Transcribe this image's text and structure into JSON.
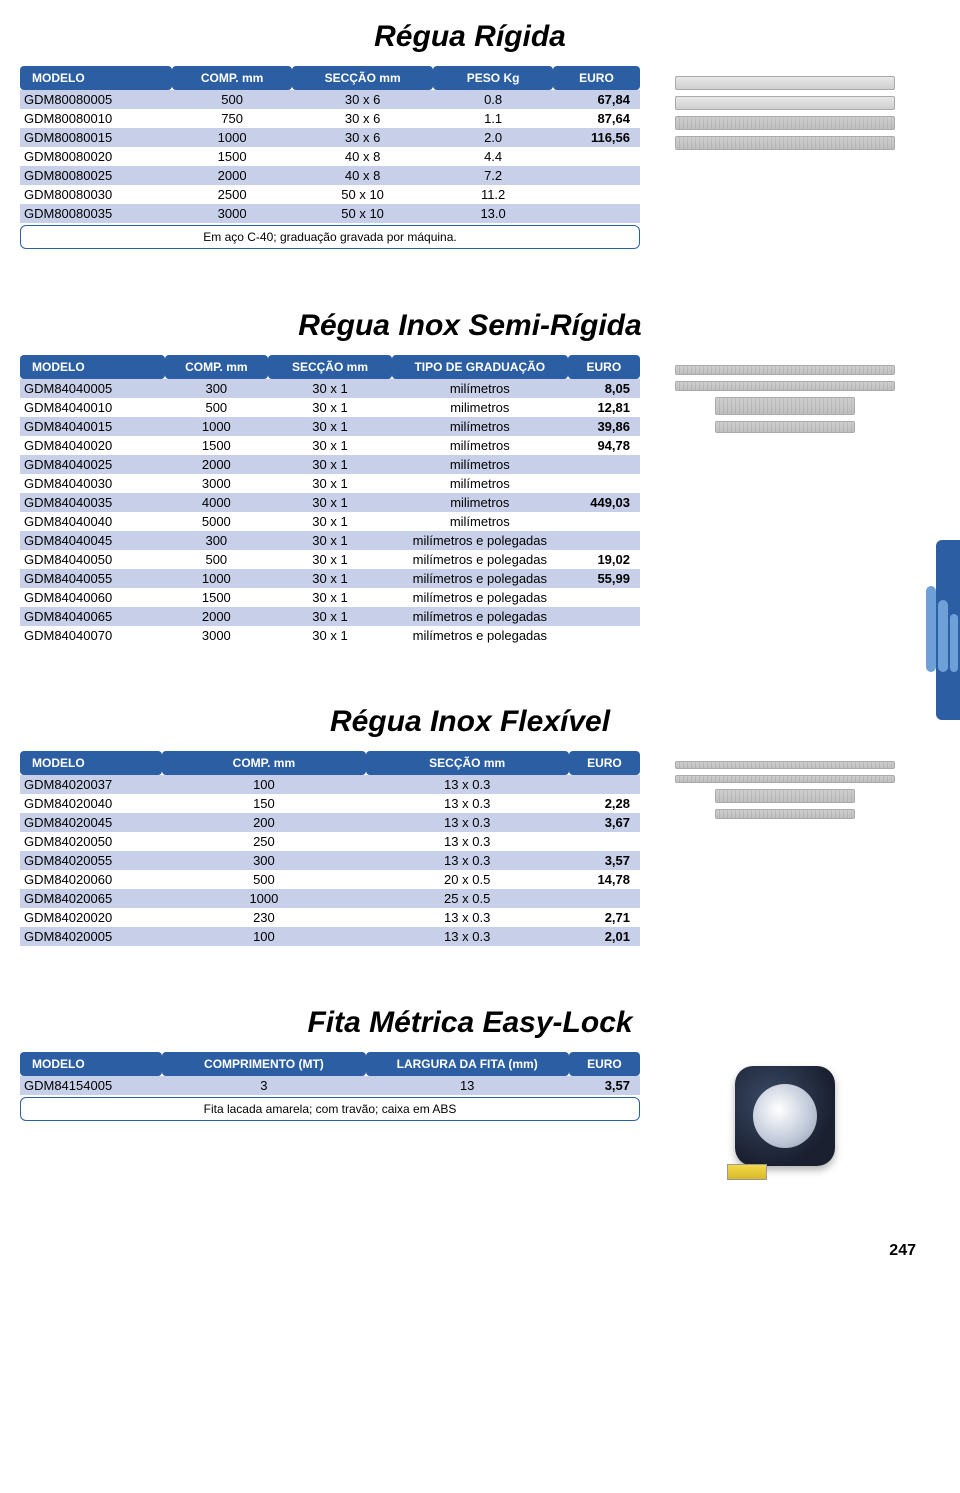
{
  "page_number": "247",
  "colors": {
    "header_bg": "#2b5ea3",
    "header_fg": "#ffffff",
    "row_alt_bg": "#c7d0e8",
    "row_plain_bg": "#ffffff"
  },
  "sections": [
    {
      "title": "Régua Rígida",
      "columns": [
        "MODELO",
        "COMP. mm",
        "SECÇÃO mm",
        "PESO Kg",
        "EURO"
      ],
      "rows": [
        {
          "model": "GDM80080005",
          "c1": "500",
          "c2": "30 x 6",
          "c3": "0.8",
          "euro": "67,84"
        },
        {
          "model": "GDM80080010",
          "c1": "750",
          "c2": "30 x 6",
          "c3": "1.1",
          "euro": "87,64"
        },
        {
          "model": "GDM80080015",
          "c1": "1000",
          "c2": "30 x 6",
          "c3": "2.0",
          "euro": "116,56"
        },
        {
          "model": "GDM80080020",
          "c1": "1500",
          "c2": "40 x 8",
          "c3": "4.4",
          "euro": ""
        },
        {
          "model": "GDM80080025",
          "c1": "2000",
          "c2": "40 x 8",
          "c3": "7.2",
          "euro": ""
        },
        {
          "model": "GDM80080030",
          "c1": "2500",
          "c2": "50 x 10",
          "c3": "11.2",
          "euro": ""
        },
        {
          "model": "GDM80080035",
          "c1": "3000",
          "c2": "50 x 10",
          "c3": "13.0",
          "euro": ""
        }
      ],
      "footnote": "Em aço C-40; graduação gravada por máquina."
    },
    {
      "title": "Régua Inox Semi-Rígida",
      "columns": [
        "MODELO",
        "COMP. mm",
        "SECÇÃO mm",
        "TIPO DE GRADUAÇÃO",
        "EURO"
      ],
      "rows": [
        {
          "model": "GDM84040005",
          "c1": "300",
          "c2": "30 x 1",
          "c3": "milímetros",
          "euro": "8,05"
        },
        {
          "model": "GDM84040010",
          "c1": "500",
          "c2": "30 x 1",
          "c3": "milimetros",
          "euro": "12,81"
        },
        {
          "model": "GDM84040015",
          "c1": "1000",
          "c2": "30 x 1",
          "c3": "milímetros",
          "euro": "39,86"
        },
        {
          "model": "GDM84040020",
          "c1": "1500",
          "c2": "30 x 1",
          "c3": "milímetros",
          "euro": "94,78"
        },
        {
          "model": "GDM84040025",
          "c1": "2000",
          "c2": "30 x 1",
          "c3": "milímetros",
          "euro": ""
        },
        {
          "model": "GDM84040030",
          "c1": "3000",
          "c2": "30 x 1",
          "c3": "milímetros",
          "euro": ""
        },
        {
          "model": "GDM84040035",
          "c1": "4000",
          "c2": "30 x 1",
          "c3": "milimetros",
          "euro": "449,03"
        },
        {
          "model": "GDM84040040",
          "c1": "5000",
          "c2": "30 x 1",
          "c3": "milímetros",
          "euro": ""
        },
        {
          "model": "GDM84040045",
          "c1": "300",
          "c2": "30 x 1",
          "c3": "milímetros e polegadas",
          "euro": ""
        },
        {
          "model": "GDM84040050",
          "c1": "500",
          "c2": "30 x 1",
          "c3": "milímetros e polegadas",
          "euro": "19,02"
        },
        {
          "model": "GDM84040055",
          "c1": "1000",
          "c2": "30 x 1",
          "c3": "milímetros e polegadas",
          "euro": "55,99"
        },
        {
          "model": "GDM84040060",
          "c1": "1500",
          "c2": "30 x 1",
          "c3": "milímetros e polegadas",
          "euro": ""
        },
        {
          "model": "GDM84040065",
          "c1": "2000",
          "c2": "30 x 1",
          "c3": "milímetros e polegadas",
          "euro": ""
        },
        {
          "model": "GDM84040070",
          "c1": "3000",
          "c2": "30 x 1",
          "c3": "milímetros e polegadas",
          "euro": ""
        }
      ]
    },
    {
      "title": "Régua Inox Flexível",
      "columns": [
        "MODELO",
        "COMP. mm",
        "SECÇÃO mm",
        "EURO"
      ],
      "rows": [
        {
          "model": "GDM84020037",
          "c1": "100",
          "c2": "13 x 0.3",
          "euro": ""
        },
        {
          "model": "GDM84020040",
          "c1": "150",
          "c2": "13 x 0.3",
          "euro": "2,28"
        },
        {
          "model": "GDM84020045",
          "c1": "200",
          "c2": "13 x 0.3",
          "euro": "3,67"
        },
        {
          "model": "GDM84020050",
          "c1": "250",
          "c2": "13 x 0.3",
          "euro": ""
        },
        {
          "model": "GDM84020055",
          "c1": "300",
          "c2": "13 x 0.3",
          "euro": "3,57"
        },
        {
          "model": "GDM84020060",
          "c1": "500",
          "c2": "20 x 0.5",
          "euro": "14,78"
        },
        {
          "model": "GDM84020065",
          "c1": "1000",
          "c2": "25 x 0.5",
          "euro": ""
        },
        {
          "model": "GDM84020020",
          "c1": "230",
          "c2": "13 x 0.3",
          "euro": "2,71"
        },
        {
          "model": "GDM84020005",
          "c1": "100",
          "c2": "13 x 0.3",
          "euro": "2,01"
        }
      ]
    },
    {
      "title": "Fita Métrica Easy-Lock",
      "columns": [
        "MODELO",
        "COMPRIMENTO (MT)",
        "LARGURA DA FITA (mm)",
        "EURO"
      ],
      "rows": [
        {
          "model": "GDM84154005",
          "c1": "3",
          "c2": "13",
          "euro": "3,57"
        }
      ],
      "footnote": "Fita lacada amarela; com travão; caixa em ABS"
    }
  ]
}
